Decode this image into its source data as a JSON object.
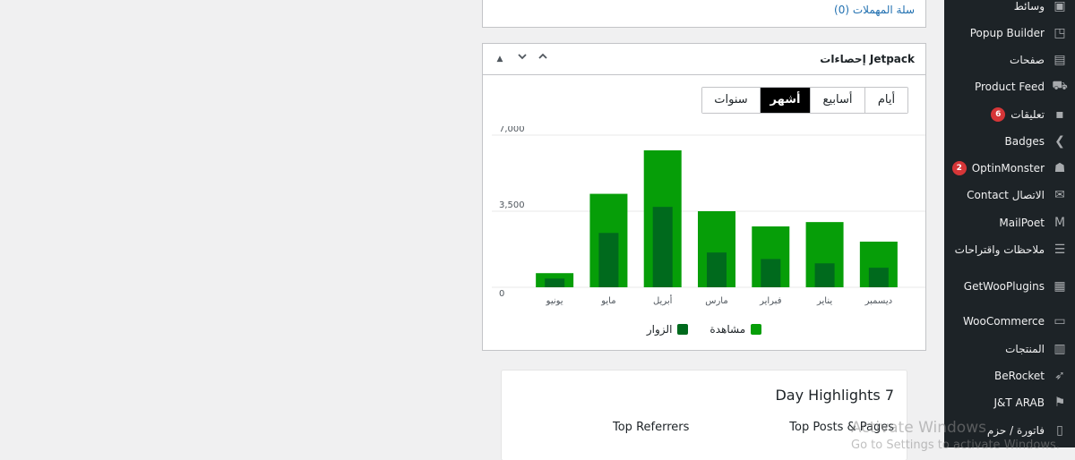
{
  "trash": {
    "link": "سلة المهملات (0)"
  },
  "widget": {
    "title": "إحصاءات Jetpack",
    "tabs": [
      {
        "label": "سنوات",
        "active": false
      },
      {
        "label": "أشهر",
        "active": true
      },
      {
        "label": "أسابيع",
        "active": false
      },
      {
        "label": "أيام",
        "active": false
      }
    ]
  },
  "chart_data": {
    "type": "bar",
    "categories": [
      "ديسمبر",
      "يناير",
      "فبراير",
      "مارس",
      "أبريل",
      "مايو",
      "يونيو"
    ],
    "series": [
      {
        "name": "مشاهدة",
        "color": "#069e08",
        "values": [
          2100,
          3000,
          2800,
          3500,
          6300,
          4300,
          650
        ]
      },
      {
        "name": "الزوار",
        "color": "#006a1d",
        "values": [
          900,
          1100,
          1300,
          1600,
          3700,
          2500,
          400
        ]
      }
    ],
    "y_ticks": [
      "7,000",
      "3,500",
      "0"
    ],
    "ylim": [
      0,
      7000
    ],
    "legend": "bottom"
  },
  "highlights": {
    "title": "Day Highlights 7",
    "top_posts": "Top Posts & Pages",
    "top_referrers": "Top Referrers"
  },
  "sidebar": {
    "items": [
      {
        "label": "وسائط",
        "icon": "media-icon"
      },
      {
        "label": "Popup Builder",
        "icon": "popup-icon"
      },
      {
        "label": "صفحات",
        "icon": "pages-icon"
      },
      {
        "label": "Product Feed",
        "icon": "cart-icon"
      },
      {
        "label": "تعليقات",
        "icon": "comments-icon",
        "badge": "6"
      },
      {
        "label": "Badges",
        "icon": "chevron-icon"
      },
      {
        "label": "OptinMonster",
        "icon": "monster-icon",
        "badge": "2"
      },
      {
        "label": "Contact الاتصال",
        "icon": "mail-icon"
      },
      {
        "label": "MailPoet",
        "icon": "mailpoet-icon"
      },
      {
        "label": "ملاحظات واقتراحات",
        "icon": "feedback-icon"
      },
      {
        "label": "GetWooPlugins",
        "icon": "plugins-icon"
      },
      {
        "label": "WooCommerce",
        "icon": "woo-icon"
      },
      {
        "label": "المنتجات",
        "icon": "products-icon"
      },
      {
        "label": "BeRocket",
        "icon": "rocket-icon"
      },
      {
        "label": "J&T ARAB",
        "icon": "jt-icon"
      },
      {
        "label": "فاتورة / حزم",
        "icon": "invoice-icon"
      }
    ]
  },
  "watermark": {
    "line1": "Activate Windows",
    "line2": "Go to Settings to activate Windows."
  }
}
